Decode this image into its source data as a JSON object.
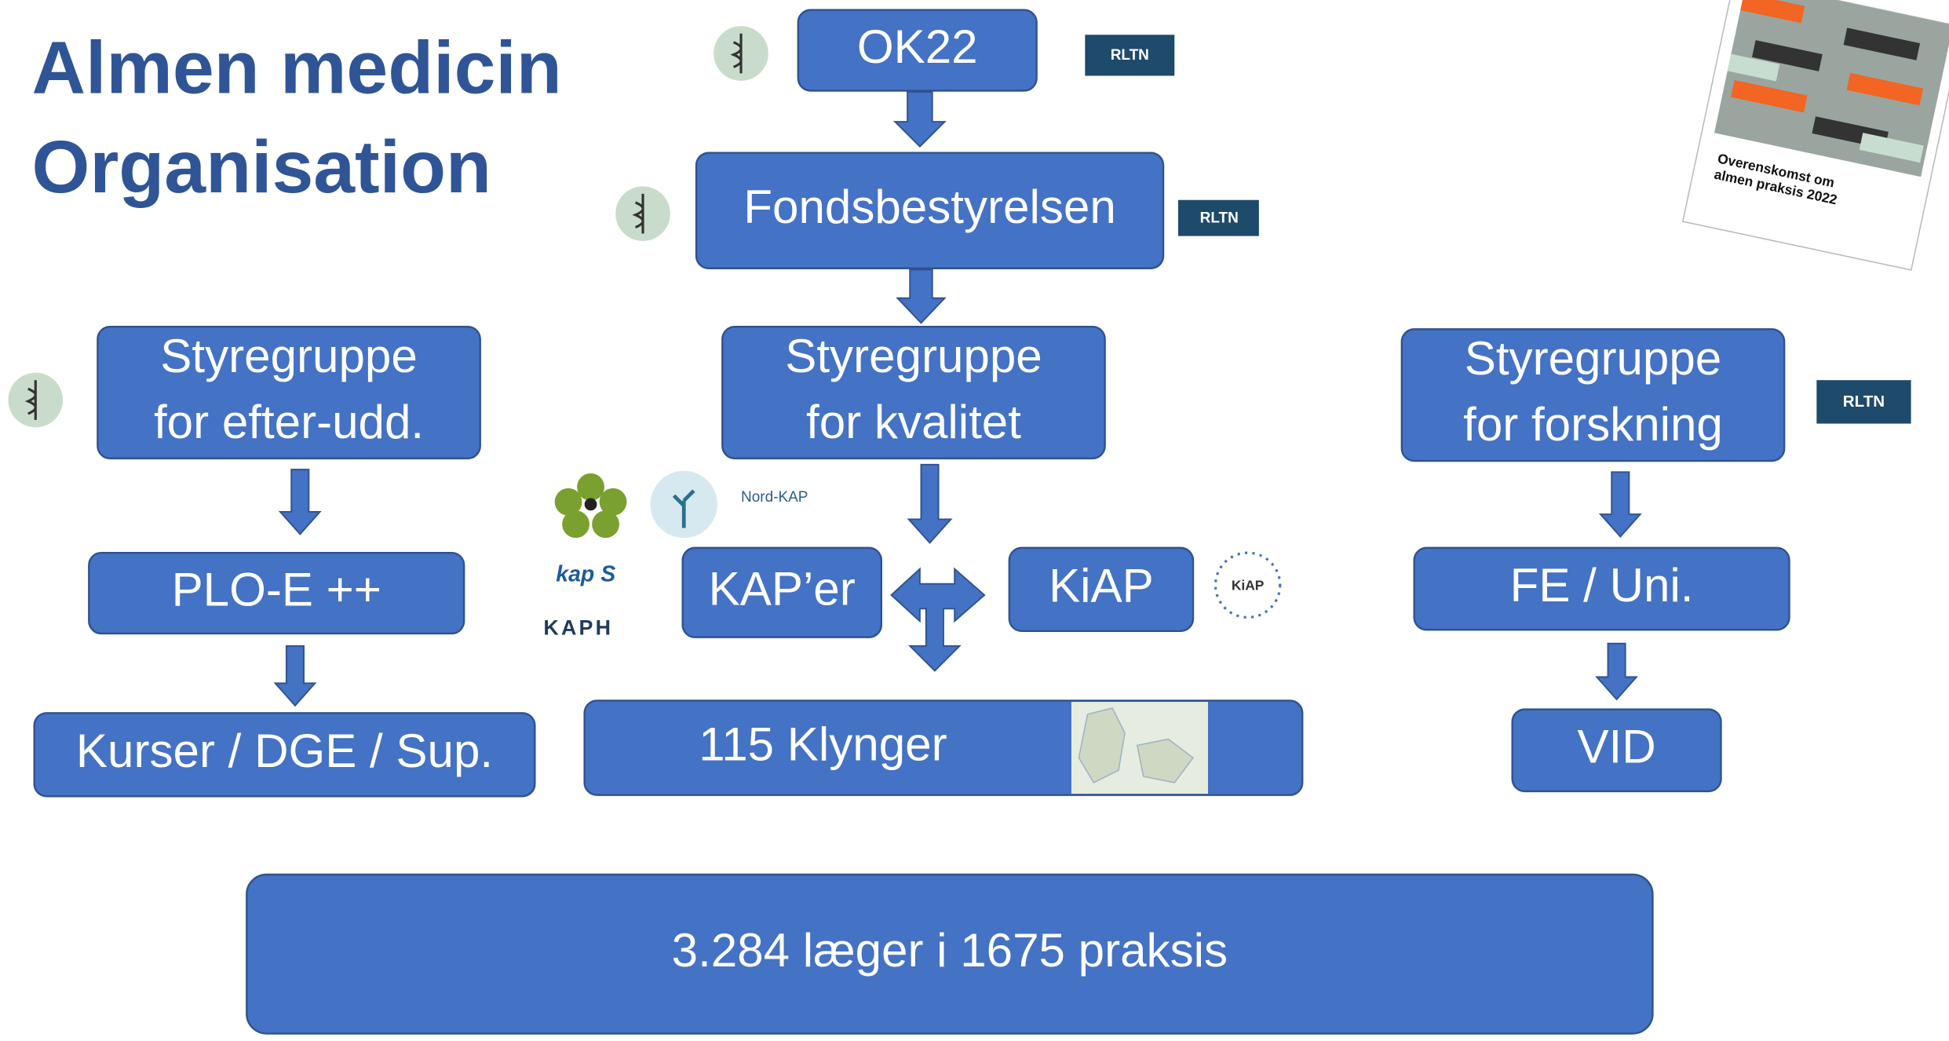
{
  "title": [
    "Almen medicin",
    "Organisation"
  ],
  "nodes": [
    {
      "lines": [
        "OK22"
      ]
    },
    {
      "lines": [
        "Fondsbestyrelsen"
      ]
    },
    {
      "lines": [
        "Styregruppe",
        "for efter-udd."
      ]
    },
    {
      "lines": [
        "Styregruppe",
        "for kvalitet"
      ]
    },
    {
      "lines": [
        "Styregruppe",
        "for forskning"
      ]
    },
    {
      "lines": [
        "PLO-E ++"
      ]
    },
    {
      "lines": [
        "KAP’er"
      ]
    },
    {
      "lines": [
        "KiAP"
      ]
    },
    {
      "lines": [
        "FE / Uni."
      ]
    },
    {
      "lines": [
        "Kurser / DGE / Sup."
      ]
    },
    {
      "lines": [
        "115 Klynger"
      ]
    },
    {
      "lines": [
        "VID"
      ]
    },
    {
      "lines": [
        "3.284 læger i 1675 praksis"
      ]
    }
  ],
  "badges": [
    "RLTN",
    "RLTN",
    "RLTN"
  ],
  "logos": [
    "Nord-KAP",
    "kap S",
    "KAPH",
    "KiAP"
  ],
  "cover": [
    "Overenskomst om",
    "almen praksis 2022"
  ]
}
